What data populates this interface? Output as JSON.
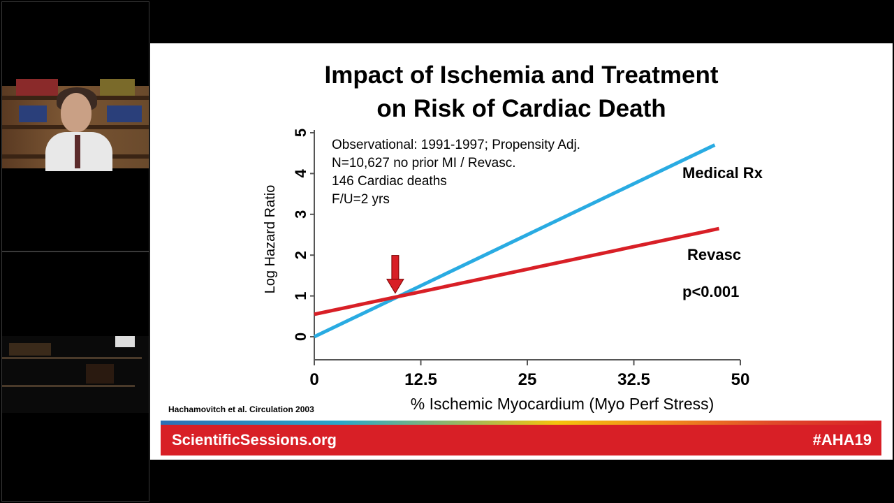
{
  "slide": {
    "title_line1": "Impact of Ischemia and Treatment",
    "title_line2": "on Risk of Cardiac Death",
    "citation": "Hachamovitch et al. Circulation 2003",
    "footer_left": "ScientificSessions.org",
    "footer_right": "#AHA19"
  },
  "chart_data": {
    "type": "line",
    "xlabel": "% Ischemic Myocardium (Myo Perf Stress)",
    "ylabel": "Log Hazard Ratio",
    "xlim": [
      0,
      50
    ],
    "ylim": [
      0,
      5
    ],
    "x_ticks": [
      "0",
      "12.5",
      "25",
      "32.5",
      "50"
    ],
    "y_ticks": [
      "0",
      "1",
      "2",
      "3",
      "4",
      "5"
    ],
    "grid": false,
    "annotation_lines": [
      "Observational: 1991-1997; Propensity Adj.",
      "N=10,627 no prior MI / Revasc.",
      "146 Cardiac deaths",
      "F/U=2 yrs"
    ],
    "series": [
      {
        "name": "Medical  Rx",
        "color": "#29abe2",
        "x": [
          0,
          47
        ],
        "y": [
          0,
          4.7
        ]
      },
      {
        "name": "Revasc",
        "color": "#d81f26",
        "x": [
          0,
          47.5
        ],
        "y": [
          0.55,
          2.65
        ]
      }
    ],
    "crossover_arrow": {
      "x": 9.5,
      "y": 1.0,
      "color": "#d81f26"
    },
    "pvalue_label": "p<0.001"
  }
}
